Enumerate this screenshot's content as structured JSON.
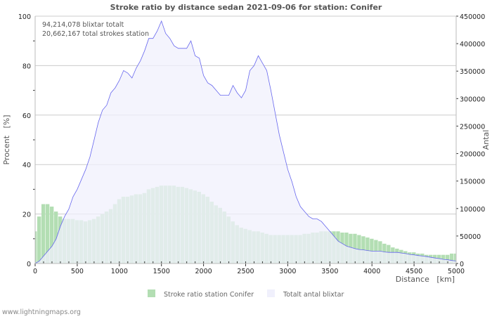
{
  "chart_data": {
    "type": "bar+area",
    "title": "Stroke ratio by distance sedan 2021-09-06 for station: Conifer",
    "annotations": [
      "94,214,078 blixtar totalt",
      "20,662,167 total strokes station"
    ],
    "xlabel": "Distance   [km]",
    "ylabel_left": "Procent   [%]",
    "ylabel_right": "Antal",
    "xlim": [
      0,
      5000
    ],
    "ylim_left": [
      0,
      100
    ],
    "ylim_right": [
      0,
      450000
    ],
    "x_ticks": [
      "0",
      "500",
      "1000",
      "1500",
      "2000",
      "2500",
      "3000",
      "3500",
      "4000",
      "4500",
      "5000"
    ],
    "y_left_ticks": [
      "0",
      "20",
      "40",
      "60",
      "80",
      "100"
    ],
    "y_right_ticks": [
      "0",
      "50000",
      "100000",
      "150000",
      "200000",
      "250000",
      "300000",
      "350000",
      "400000",
      "450000"
    ],
    "grid": true,
    "legend_position": "bottom",
    "x_step": 50,
    "series": [
      {
        "name": "Stroke ratio station Conifer",
        "axis": "left",
        "kind": "bar",
        "color": "#b3deb3",
        "values": [
          13,
          19,
          24,
          24,
          23,
          21,
          19,
          18,
          18,
          18,
          17.5,
          17.5,
          17,
          17.5,
          18,
          19,
          20,
          21,
          22,
          24,
          26,
          27,
          27,
          27.5,
          28,
          28,
          28.5,
          30,
          30.5,
          31,
          31.5,
          31.5,
          31.5,
          31.5,
          31,
          31,
          30.5,
          30,
          29.5,
          29,
          28,
          27,
          25,
          23.5,
          22.5,
          21,
          19,
          17,
          15.5,
          14.5,
          14,
          13.5,
          13,
          13,
          12.5,
          12,
          11.5,
          11.5,
          11.5,
          11.5,
          11.5,
          11.5,
          11.5,
          11.5,
          12,
          12,
          12.5,
          12.5,
          13,
          13,
          13,
          13,
          13,
          12.5,
          12.5,
          12,
          12,
          11.5,
          11,
          10.5,
          10,
          9.5,
          9,
          8,
          7.5,
          6.5,
          6,
          5.5,
          5,
          4.5,
          4.5,
          4,
          4,
          3.5,
          3.5,
          3.5,
          3.5,
          3.5,
          3.5,
          4,
          4
        ]
      },
      {
        "name": "Totalt antal blixtar",
        "axis": "right",
        "kind": "area",
        "color": "#f0f0fc",
        "line_color": "#6666ee",
        "values": [
          0,
          4500,
          13500,
          22500,
          31500,
          45000,
          67500,
          85500,
          99000,
          121500,
          135000,
          153000,
          171000,
          193500,
          225000,
          256500,
          279000,
          288000,
          310500,
          319500,
          333000,
          351000,
          346500,
          337500,
          355500,
          369000,
          387000,
          409500,
          409500,
          423000,
          441000,
          418500,
          409500,
          396000,
          391500,
          391500,
          391500,
          405000,
          378000,
          373500,
          342000,
          328500,
          324000,
          315000,
          306000,
          306000,
          306000,
          324000,
          310500,
          301500,
          315000,
          351000,
          360000,
          378000,
          364500,
          351000,
          315000,
          274500,
          234000,
          202500,
          171000,
          148500,
          121500,
          103500,
          94500,
          85500,
          81000,
          81000,
          76500,
          67500,
          58500,
          49500,
          40500,
          36000,
          31500,
          29250,
          27000,
          25500,
          24750,
          23500,
          22500,
          22500,
          22500,
          21000,
          20250,
          20250,
          20250,
          19000,
          18000,
          16500,
          15750,
          14500,
          13500,
          12500,
          11250,
          10000,
          9000,
          7500,
          6750,
          5500,
          4500
        ]
      }
    ]
  },
  "footer": "www.lightningmaps.org"
}
